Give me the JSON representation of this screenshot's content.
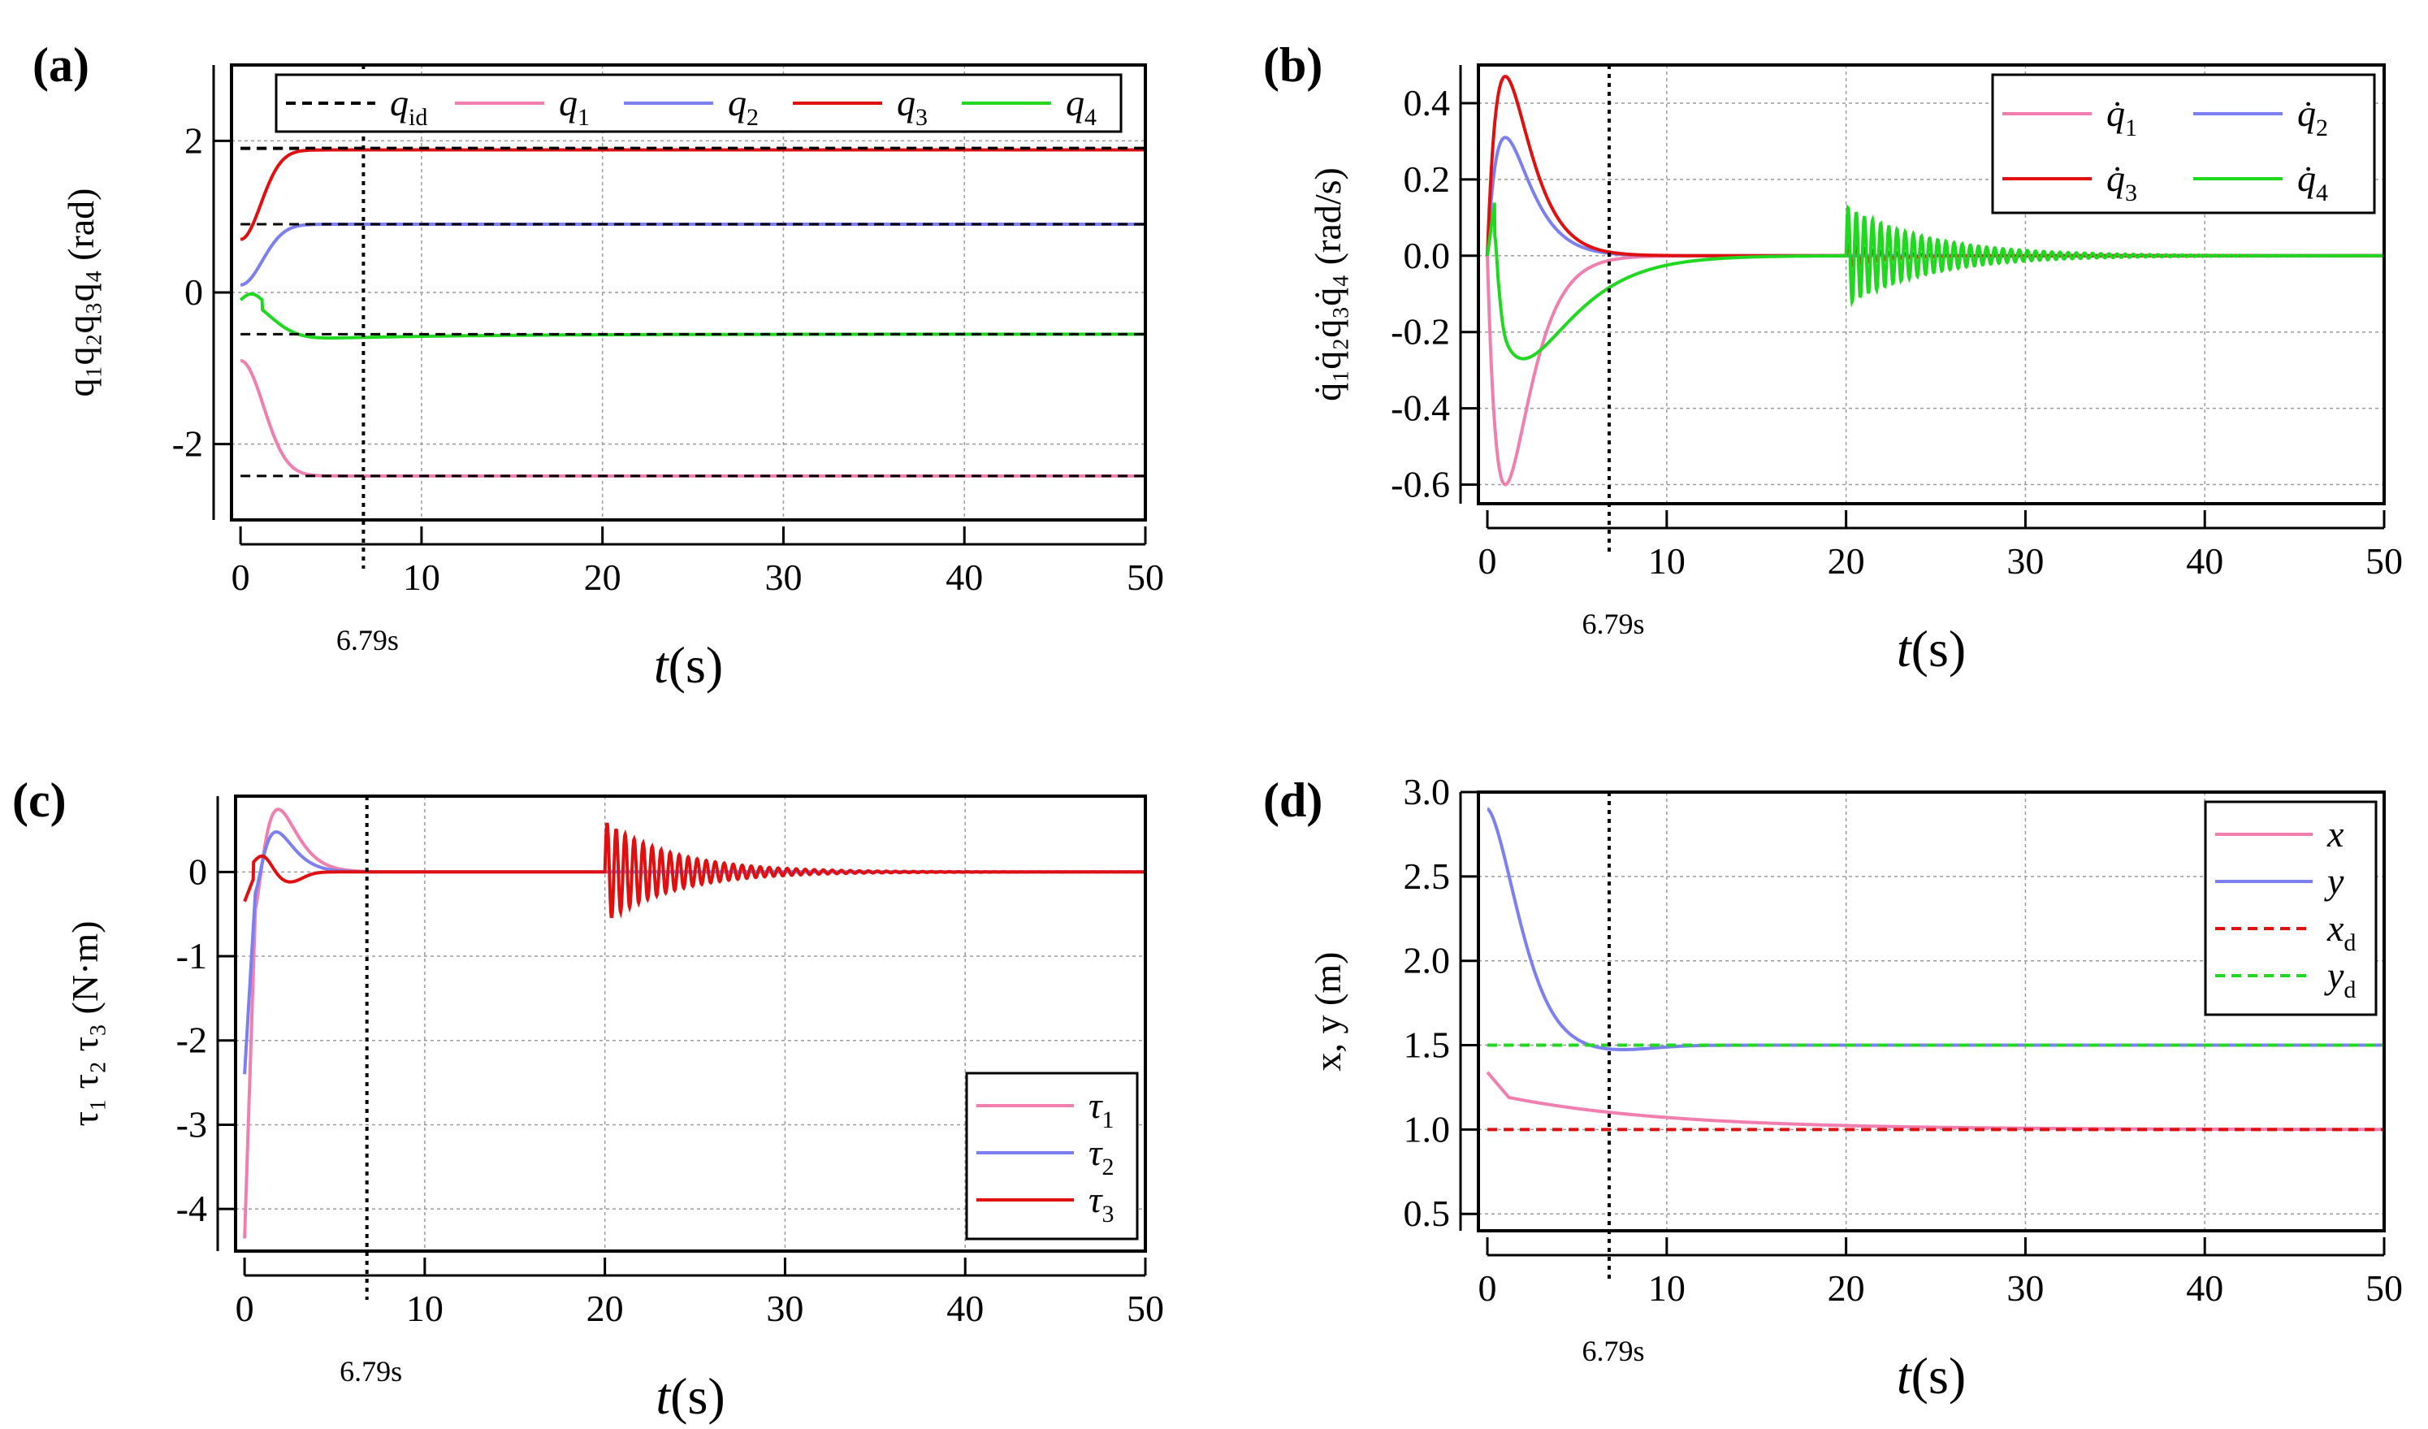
{
  "chart_data": [
    {
      "id": "a",
      "type": "line",
      "panel_label": "(a)",
      "xlabel_var": "t",
      "xlabel_unit": "(s)",
      "ylabel": "q₁q₂q₃q₄ (rad)",
      "xlim": [
        -0.5,
        50
      ],
      "ylim": [
        -3.0,
        3.0
      ],
      "xticks": [
        0,
        10,
        20,
        30,
        40,
        50
      ],
      "yticks": [
        -2,
        0,
        2
      ],
      "ytick_labels": [
        "-2",
        "0",
        "2"
      ],
      "vline": {
        "x": 6.79,
        "label": "6.79s"
      },
      "legend_position": "top",
      "legend_layout": "row",
      "series": [
        {
          "name": "q",
          "sub": "id",
          "color": "#000000",
          "style": "dashed",
          "shape": "ref",
          "value": 1.9
        },
        {
          "name": "q",
          "sub": "1",
          "color": "#f07fb0",
          "style": "solid",
          "shape": "conv",
          "start": -0.9,
          "final": -2.42,
          "tau": 1.7
        },
        {
          "name": "q",
          "sub": "2",
          "color": "#7b7ff0",
          "style": "solid",
          "shape": "conv",
          "start": 0.1,
          "final": 0.9,
          "tau": 1.6
        },
        {
          "name": "q",
          "sub": "3",
          "color": "#e01010",
          "style": "solid",
          "shape": "conv",
          "start": 0.7,
          "final": 1.88,
          "tau": 1.5
        },
        {
          "name": "q",
          "sub": "4",
          "color": "#20d820",
          "style": "solid",
          "shape": "q4",
          "start": -0.1,
          "final": -0.55
        }
      ],
      "reference_values": [
        1.9,
        0.9,
        -0.55,
        -2.42
      ]
    },
    {
      "id": "b",
      "type": "line",
      "panel_label": "(b)",
      "xlabel_var": "t",
      "xlabel_unit": "(s)",
      "ylabel": "q̇₁q̇₂q̇₃q̇₄ (rad/s)",
      "xlim": [
        -0.5,
        50
      ],
      "ylim": [
        -0.65,
        0.5
      ],
      "xticks": [
        0,
        10,
        20,
        30,
        40,
        50
      ],
      "yticks": [
        -0.6,
        -0.4,
        -0.2,
        0.0,
        0.2,
        0.4
      ],
      "ytick_labels": [
        "-0.6",
        "-0.4",
        "-0.2",
        "0.0",
        "0.2",
        "0.4"
      ],
      "vline": {
        "x": 6.79,
        "label": "6.79s"
      },
      "legend_position": "top-right",
      "legend_layout": "grid2",
      "series": [
        {
          "name": "q̇",
          "sub": "1",
          "color": "#f07fb0",
          "style": "solid",
          "shape": "pulse",
          "peak": -0.6,
          "tpeak": 1.0
        },
        {
          "name": "q̇",
          "sub": "2",
          "color": "#7b7ff0",
          "style": "solid",
          "shape": "pulse",
          "peak": 0.31,
          "tpeak": 1.0
        },
        {
          "name": "q̇",
          "sub": "3",
          "color": "#e01010",
          "style": "solid",
          "shape": "pulse",
          "peak": 0.47,
          "tpeak": 1.0,
          "osc_amp": 0.03
        },
        {
          "name": "q̇",
          "sub": "4",
          "color": "#20d820",
          "style": "solid",
          "shape": "q4dot",
          "osc_amp": 0.13
        }
      ]
    },
    {
      "id": "c",
      "type": "line",
      "panel_label": "(c)",
      "xlabel_var": "t",
      "xlabel_unit": "(s)",
      "ylabel": "τ₁ τ₂ τ₃ (N·m)",
      "xlim": [
        -0.5,
        50
      ],
      "ylim": [
        -4.5,
        0.9
      ],
      "xticks": [
        0,
        10,
        20,
        30,
        40,
        50
      ],
      "yticks": [
        -4,
        -3,
        -2,
        -1,
        0
      ],
      "ytick_labels": [
        "-4",
        "-3",
        "-2",
        "-1",
        "0"
      ],
      "vline": {
        "x": 6.79,
        "label": "6.79s"
      },
      "legend_position": "bottom-right",
      "legend_layout": "column",
      "series": [
        {
          "name": "τ",
          "sub": "1",
          "color": "#f07fb0",
          "style": "solid",
          "shape": "torque",
          "start": -4.35,
          "peak": 0.78,
          "tpeak": 1.8
        },
        {
          "name": "τ",
          "sub": "2",
          "color": "#7b7ff0",
          "style": "solid",
          "shape": "torque",
          "start": -2.4,
          "peak": 0.5,
          "tpeak": 1.7
        },
        {
          "name": "τ",
          "sub": "3",
          "color": "#e01010",
          "style": "solid",
          "shape": "torque3",
          "start": -0.35,
          "peak": 0.2,
          "tpeak": 1.0,
          "osc_amp": 0.6
        }
      ]
    },
    {
      "id": "d",
      "type": "line",
      "panel_label": "(d)",
      "xlabel_var": "t",
      "xlabel_unit": "(s)",
      "ylabel": "x, y (m)",
      "xlim": [
        -0.5,
        50
      ],
      "ylim": [
        0.4,
        3.0
      ],
      "xticks": [
        0,
        10,
        20,
        30,
        40,
        50
      ],
      "yticks": [
        0.5,
        1.0,
        1.5,
        2.0,
        2.5,
        3.0
      ],
      "ytick_labels": [
        "0.5",
        "1.0",
        "1.5",
        "2.0",
        "2.5",
        "3.0"
      ],
      "vline": {
        "x": 6.79,
        "label": "6.79s"
      },
      "legend_position": "top-right",
      "legend_layout": "column",
      "series": [
        {
          "name": "x",
          "sub": "",
          "color": "#f07fb0",
          "style": "solid",
          "shape": "xpos",
          "start": 1.34,
          "final": 1.0
        },
        {
          "name": "y",
          "sub": "",
          "color": "#7b7ff0",
          "style": "solid",
          "shape": "ypos",
          "start": 2.9,
          "final": 1.5
        },
        {
          "name": "x",
          "sub": "d",
          "color": "#e01010",
          "style": "dashed",
          "shape": "ref",
          "value": 1.0
        },
        {
          "name": "y",
          "sub": "d",
          "color": "#20d820",
          "style": "dashed",
          "shape": "ref",
          "value": 1.5
        }
      ]
    }
  ]
}
